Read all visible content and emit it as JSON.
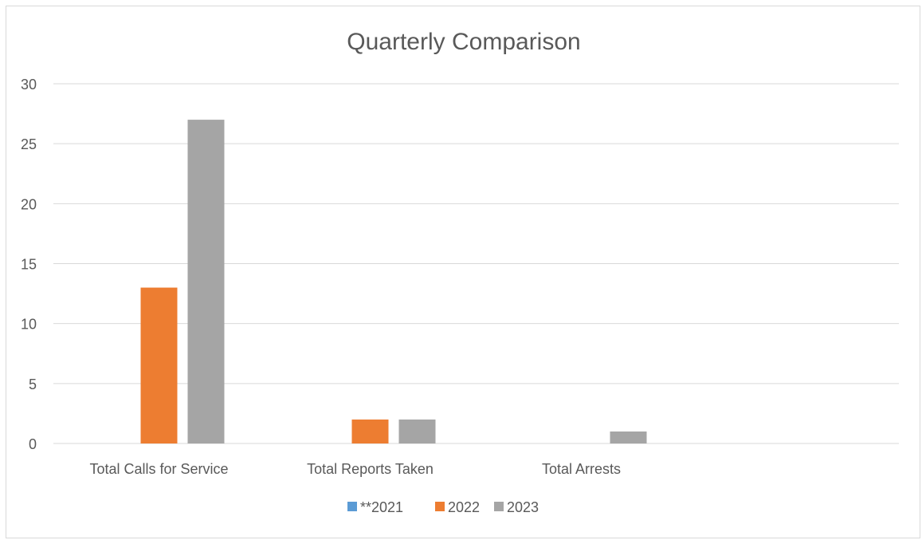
{
  "chart_data": {
    "type": "bar",
    "title": "Quarterly Comparison",
    "categories": [
      "Total Calls for Service",
      "Total Reports Taken",
      "Total Arrests"
    ],
    "series": [
      {
        "name": "**2021",
        "color": "#5b9bd5",
        "values": [
          0,
          0,
          0
        ]
      },
      {
        "name": "2022",
        "color": "#ed7d31",
        "values": [
          13,
          2,
          0
        ]
      },
      {
        "name": "2023",
        "color": "#a5a5a5",
        "values": [
          27,
          2,
          1
        ]
      }
    ],
    "ylim": [
      0,
      30
    ],
    "yticks": [
      0,
      5,
      10,
      15,
      20,
      25,
      30
    ],
    "grid": true,
    "legend_position": "bottom",
    "xlabel": "",
    "ylabel": ""
  }
}
